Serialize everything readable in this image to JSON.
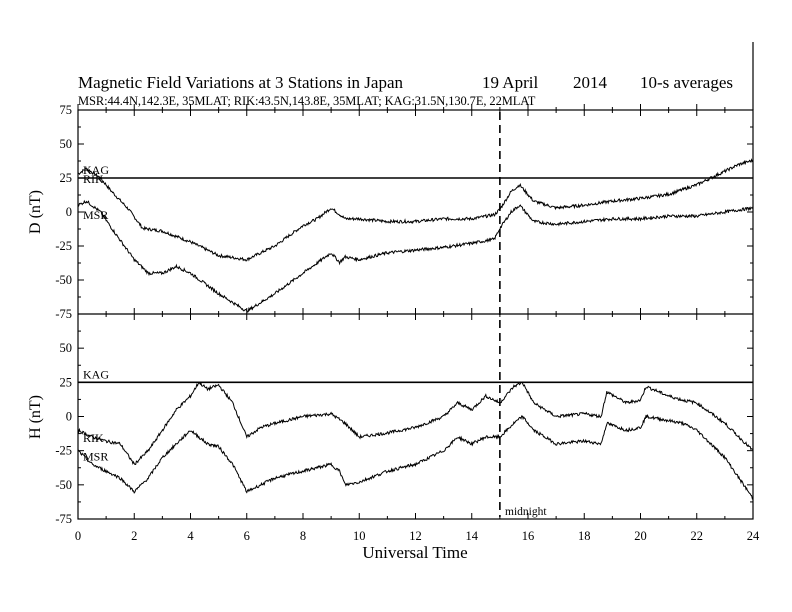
{
  "header": {
    "title": "Magnetic Field Variations at 3 Stations in Japan",
    "date": "19  April",
    "year": "2014",
    "averaging": "10-s averages",
    "stations_line": "MSR:44.4N,142.3E, 35MLAT;  RIK:43.5N,143.8E, 35MLAT;  KAG:31.5N,130.7E, 22MLAT"
  },
  "chart_data": [
    {
      "type": "line",
      "panel": "top",
      "ylabel": "D (nT)",
      "ylim": [
        -75,
        75
      ],
      "yticks": [
        "75",
        "50",
        "25",
        "0",
        "-25",
        "-50",
        "-75"
      ],
      "xlim": [
        0,
        24
      ],
      "series": [
        {
          "name": "KAG",
          "x": [
            0,
            24
          ],
          "y": [
            25,
            25
          ]
        },
        {
          "name": "RIK",
          "x": [
            0,
            0.3,
            0.8,
            1.2,
            1.8,
            2.3,
            3,
            4,
            5,
            6,
            7,
            8,
            8.5,
            9,
            9.5,
            10,
            11,
            12,
            13,
            14,
            14.8,
            15,
            15.4,
            15.7,
            16.2,
            17,
            18,
            19,
            20,
            21,
            22,
            22.5,
            23,
            23.5,
            24
          ],
          "y": [
            28,
            32,
            25,
            15,
            2,
            -12,
            -14,
            -22,
            -32,
            -35,
            -25,
            -10,
            -5,
            3,
            -5,
            -5,
            -7,
            -7,
            -5,
            -5,
            -2,
            2,
            15,
            20,
            8,
            3,
            5,
            8,
            10,
            13,
            20,
            25,
            30,
            35,
            38
          ]
        },
        {
          "name": "MSR",
          "x": [
            0,
            0.3,
            0.8,
            1.3,
            2,
            2.5,
            3,
            3.5,
            4,
            5,
            6,
            7,
            8,
            9,
            9.3,
            9.5,
            10,
            11,
            12,
            13,
            14,
            14.8,
            15,
            15.4,
            15.7,
            16.2,
            17,
            18,
            19,
            20,
            21,
            22,
            23,
            24
          ],
          "y": [
            5,
            8,
            0,
            -15,
            -35,
            -45,
            -45,
            -40,
            -45,
            -60,
            -73,
            -60,
            -45,
            -30,
            -37,
            -33,
            -35,
            -30,
            -28,
            -26,
            -23,
            -20,
            -12,
            0,
            5,
            -7,
            -9,
            -7,
            -5,
            -5,
            -3,
            -3,
            0,
            3
          ]
        }
      ]
    },
    {
      "type": "line",
      "panel": "bottom",
      "ylabel": "H (nT)",
      "ylim": [
        -75,
        75
      ],
      "yticks": [
        "75",
        "50",
        "25",
        "0",
        "-25",
        "-50",
        "-75"
      ],
      "xlabel": "Universal Time",
      "xlim": [
        0,
        24
      ],
      "xticks": [
        "0",
        "2",
        "4",
        "6",
        "8",
        "10",
        "12",
        "14",
        "16",
        "18",
        "20",
        "22",
        "24"
      ],
      "series": [
        {
          "name": "KAG",
          "x": [
            0,
            24
          ],
          "y": [
            25,
            25
          ]
        },
        {
          "name": "RIK",
          "x": [
            0,
            0.5,
            1,
            1.5,
            2,
            2.5,
            3,
            3.5,
            4,
            4.3,
            4.6,
            5,
            5.5,
            6,
            6.5,
            7,
            8,
            9,
            9.5,
            10,
            11,
            12,
            13,
            13.5,
            14,
            14.5,
            15,
            15.5,
            15.8,
            16.2,
            17,
            18,
            18.6,
            18.8,
            19.5,
            20,
            20.2,
            21,
            21.5,
            22,
            23,
            24
          ],
          "y": [
            -10,
            -15,
            -18,
            -20,
            -35,
            -25,
            -10,
            5,
            15,
            25,
            20,
            23,
            10,
            -15,
            -8,
            -5,
            0,
            2,
            -5,
            -15,
            -12,
            -8,
            0,
            10,
            5,
            15,
            10,
            22,
            25,
            10,
            0,
            2,
            0,
            18,
            10,
            12,
            22,
            15,
            12,
            10,
            -5,
            -25
          ]
        },
        {
          "name": "MSR",
          "x": [
            0,
            0.5,
            1,
            1.5,
            2,
            2.5,
            3,
            3.5,
            4,
            4.3,
            4.6,
            5,
            5.5,
            6,
            6.5,
            7,
            8,
            9,
            9.3,
            9.5,
            10,
            11,
            12,
            13,
            13.5,
            14,
            14.5,
            15,
            15.5,
            15.8,
            16.2,
            17,
            18,
            18.6,
            18.8,
            19.5,
            20,
            20.2,
            21,
            21.5,
            22,
            23,
            24
          ],
          "y": [
            -25,
            -35,
            -40,
            -45,
            -55,
            -45,
            -30,
            -20,
            -10,
            -15,
            -20,
            -22,
            -35,
            -55,
            -50,
            -45,
            -40,
            -35,
            -40,
            -50,
            -48,
            -40,
            -35,
            -25,
            -15,
            -20,
            -15,
            -15,
            -5,
            0,
            -10,
            -20,
            -18,
            -20,
            -5,
            -10,
            -8,
            0,
            -3,
            -5,
            -10,
            -30,
            -60
          ]
        }
      ]
    }
  ],
  "annotations": {
    "midnight_label": "midnight",
    "midnight_ut": 15
  }
}
